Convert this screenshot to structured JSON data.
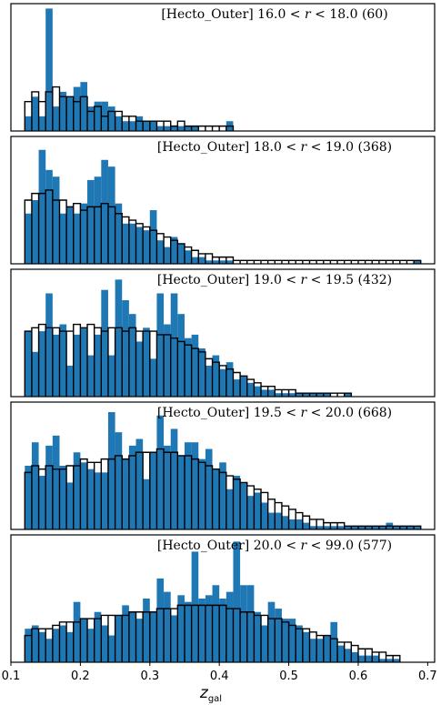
{
  "xlabel_main": "z",
  "xlabel_sub": "gal",
  "chart_data": {
    "type": "bar",
    "xlim": [
      0.1,
      0.71
    ],
    "x_ticks": [
      0.1,
      0.2,
      0.3,
      0.4,
      0.5,
      0.6,
      0.7
    ],
    "bin_start": 0.12,
    "bin_width": 0.01,
    "panels": [
      {
        "title_prefix": "[Hecto_Outer] 16.0 < ",
        "title_var": "r",
        "title_suffix": " < 18.0   (60)",
        "ylim": [
          0,
          26
        ],
        "series": [
          {
            "name": "",
            "type": "bar",
            "values": [
              3,
              7,
              3,
              25,
              5,
              8,
              7,
              9,
              10,
              5,
              6,
              6,
              5,
              3,
              2,
              2,
              3,
              2,
              2,
              1,
              1,
              1,
              1,
              1,
              1,
              0,
              0,
              0,
              0,
              2
            ]
          },
          {
            "name": "",
            "type": "step",
            "values": [
              6,
              8,
              6,
              8,
              9,
              7,
              7,
              6,
              7,
              4,
              5,
              3,
              4,
              4,
              3,
              3,
              2,
              2,
              2,
              2,
              2,
              1,
              2,
              1,
              1,
              1,
              1,
              1,
              1,
              1
            ]
          }
        ]
      },
      {
        "title_prefix": "[Hecto_Outer] 18.0 < ",
        "title_var": "r",
        "title_suffix": " < 19.0   (368)",
        "ylim": [
          0,
          38
        ],
        "series": [
          {
            "name": "",
            "type": "bar",
            "values": [
              15,
              19,
              34,
              28,
              26,
              15,
              17,
              15,
              18,
              25,
              26,
              31,
              29,
              18,
              12,
              12,
              11,
              10,
              16,
              7,
              5,
              8,
              6,
              4,
              2,
              2,
              1,
              1,
              1,
              1,
              0,
              0,
              0,
              0,
              0,
              0,
              0,
              0,
              0,
              0,
              0,
              0,
              0,
              0,
              0,
              0,
              0,
              0,
              0,
              0,
              0,
              0,
              0,
              0,
              0,
              0,
              1
            ]
          },
          {
            "name": "",
            "type": "step",
            "values": [
              19,
              21,
              21,
              22,
              19,
              19,
              17,
              18,
              16,
              17,
              17,
              18,
              17,
              15,
              14,
              13,
              12,
              11,
              10,
              9,
              8,
              7,
              6,
              5,
              4,
              3,
              3,
              2,
              2,
              2,
              1,
              1,
              1,
              1,
              1,
              1,
              1,
              1,
              1,
              1,
              1,
              1,
              1,
              1,
              1,
              1,
              1,
              1,
              1,
              1,
              1,
              1,
              1,
              1,
              1,
              1,
              1
            ]
          }
        ]
      },
      {
        "title_prefix": "[Hecto_Outer] 19.0 < ",
        "title_var": "r",
        "title_suffix": " < 19.5   (432)",
        "ylim": [
          0,
          37
        ],
        "series": [
          {
            "name": "",
            "type": "bar",
            "values": [
              19,
              13,
              19,
              30,
              18,
              21,
              9,
              18,
              20,
              12,
              18,
              31,
              12,
              34,
              28,
              24,
              16,
              20,
              11,
              30,
              21,
              30,
              24,
              17,
              18,
              14,
              9,
              12,
              8,
              10,
              5,
              6,
              4,
              3,
              2,
              2,
              1,
              1,
              1,
              1,
              1,
              1,
              1,
              1,
              0,
              0,
              1
            ]
          },
          {
            "name": "",
            "type": "step",
            "values": [
              19,
              20,
              21,
              20,
              20,
              19,
              19,
              21,
              20,
              21,
              20,
              19,
              20,
              20,
              19,
              20,
              19,
              19,
              19,
              18,
              18,
              17,
              16,
              15,
              14,
              13,
              11,
              10,
              9,
              8,
              7,
              6,
              5,
              4,
              3,
              3,
              2,
              2,
              2,
              1,
              1,
              1,
              1,
              1,
              1,
              1,
              1
            ]
          }
        ]
      },
      {
        "title_prefix": "[Hecto_Outer] 19.5 < ",
        "title_var": "r",
        "title_suffix": " < 20.0   (668)",
        "ylim": [
          0,
          38
        ],
        "series": [
          {
            "name": "",
            "type": "bar",
            "values": [
              19,
              26,
              16,
              25,
              28,
              19,
              14,
              23,
              20,
              18,
              17,
              17,
              35,
              29,
              21,
              25,
              27,
              15,
              23,
              34,
              25,
              30,
              22,
              26,
              26,
              21,
              24,
              18,
              20,
              12,
              16,
              14,
              10,
              11,
              8,
              5,
              5,
              4,
              3,
              3,
              2,
              1,
              1,
              1,
              1,
              1,
              1,
              1,
              1,
              1,
              1,
              1,
              2,
              1,
              1,
              1,
              1
            ]
          },
          {
            "name": "",
            "type": "step",
            "values": [
              17,
              19,
              18,
              19,
              18,
              18,
              19,
              19,
              21,
              20,
              20,
              21,
              21,
              22,
              21,
              22,
              23,
              23,
              23,
              24,
              23,
              23,
              22,
              22,
              21,
              20,
              19,
              18,
              17,
              16,
              15,
              14,
              13,
              12,
              11,
              9,
              8,
              7,
              6,
              5,
              4,
              3,
              3,
              2,
              2,
              2,
              1,
              1,
              1,
              1,
              1,
              1,
              1,
              1,
              1,
              1,
              1
            ]
          }
        ]
      },
      {
        "title_prefix": "[Hecto_Outer] 20.0 < ",
        "title_var": "r",
        "title_suffix": " < 99.0   (577)",
        "ylim": [
          0,
          38
        ],
        "series": [
          {
            "name": "",
            "type": "bar",
            "values": [
              10,
              11,
              9,
              7,
              10,
              11,
              9,
              18,
              13,
              10,
              15,
              11,
              8,
              14,
              17,
              15,
              13,
              19,
              15,
              25,
              21,
              14,
              20,
              18,
              33,
              19,
              20,
              23,
              19,
              21,
              36,
              23,
              23,
              15,
              11,
              18,
              16,
              13,
              13,
              11,
              9,
              7,
              7,
              8,
              12,
              5,
              4,
              3,
              2,
              2,
              2,
              1,
              1,
              1
            ]
          },
          {
            "name": "",
            "type": "step",
            "values": [
              8,
              10,
              10,
              10,
              11,
              12,
              12,
              12,
              13,
              13,
              13,
              14,
              14,
              14,
              14,
              15,
              15,
              15,
              15,
              16,
              16,
              16,
              17,
              17,
              17,
              17,
              17,
              17,
              17,
              16,
              16,
              15,
              15,
              14,
              14,
              13,
              13,
              12,
              11,
              10,
              10,
              9,
              8,
              8,
              7,
              6,
              6,
              5,
              4,
              4,
              3,
              3,
              2,
              2
            ]
          }
        ]
      }
    ]
  }
}
